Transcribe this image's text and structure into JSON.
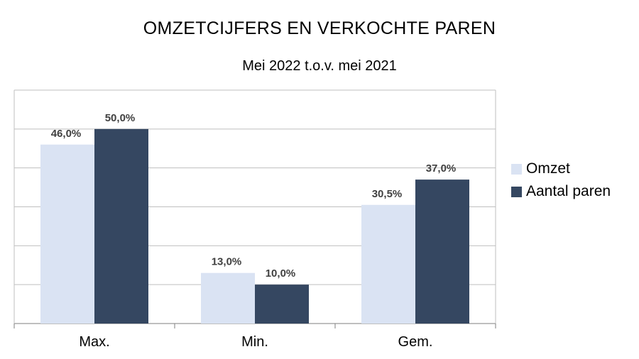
{
  "chart_data": {
    "type": "bar",
    "title": "OMZETCIJFERS EN VERKOCHTE PAREN",
    "subtitle": "Mei 2022 t.o.v. mei 2021",
    "categories": [
      "Max.",
      "Min.",
      "Gem."
    ],
    "series": [
      {
        "name": "Omzet",
        "values": [
          46.0,
          13.0,
          30.5
        ],
        "labels": [
          "46,0%",
          "13,0%",
          "30,5%"
        ],
        "color": "#dae3f3"
      },
      {
        "name": "Aantal paren",
        "values": [
          50.0,
          10.0,
          37.0
        ],
        "labels": [
          "50,0%",
          "10,0%",
          "37,0%"
        ],
        "color": "#354761"
      }
    ],
    "xlabel": "",
    "ylabel": "",
    "ylim": [
      0,
      60
    ],
    "grid": true,
    "legend_position": "right",
    "gridline_color": "#bfbfbf"
  }
}
